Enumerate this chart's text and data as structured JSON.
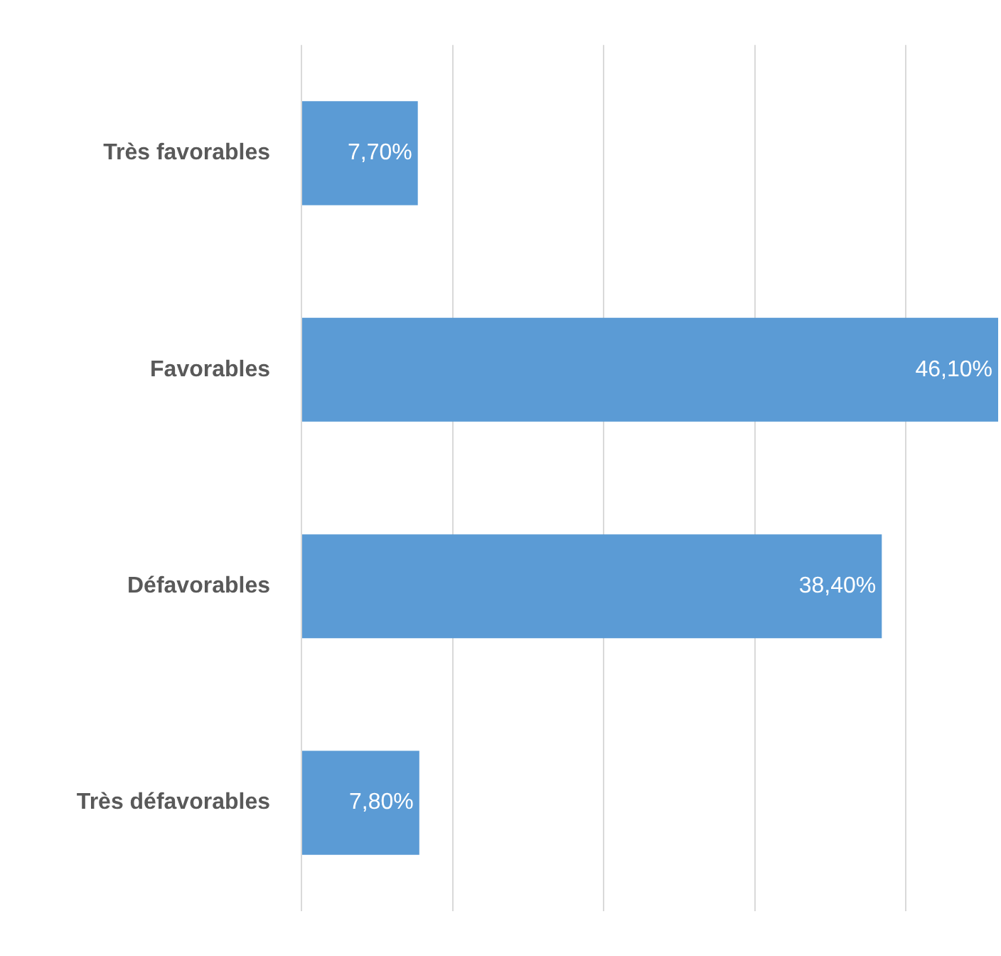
{
  "chart_data": {
    "type": "bar",
    "orientation": "horizontal",
    "categories": [
      "Très favorables",
      "Favorables",
      "Défavorables",
      "Très défavorables"
    ],
    "values": [
      7.7,
      46.1,
      38.4,
      7.8
    ],
    "value_labels": [
      "7,70%",
      "46,10%",
      "38,40%",
      "7,80%"
    ],
    "color": "#5b9bd5",
    "xlim": [
      0,
      46.1
    ],
    "xticks": [
      {
        "value": 0,
        "label": null
      },
      {
        "value": 10,
        "label": null
      },
      {
        "value": 20,
        "label": null
      },
      {
        "value": 30,
        "label": null
      },
      {
        "value": 40,
        "label": null
      }
    ],
    "grid": "x",
    "tick_labels": "y",
    "legend": false
  }
}
